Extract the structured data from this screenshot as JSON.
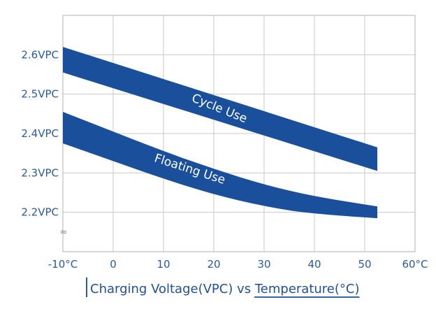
{
  "chart_data": {
    "type": "area",
    "title_parts": [
      "Charging Voltage(VPC) vs ",
      "Temperature(°C)"
    ],
    "x_ticks": [
      "-10°C",
      "0",
      "10",
      "20",
      "30",
      "40",
      "50",
      "60°C"
    ],
    "x_tick_values": [
      -10,
      0,
      10,
      20,
      30,
      40,
      50,
      60
    ],
    "y_ticks": [
      "2.6VPC",
      "2.5VPC",
      "2.4VPC",
      "2.3VPC",
      "2.2VPC"
    ],
    "y_tick_values": [
      2.6,
      2.5,
      2.4,
      2.3,
      2.2
    ],
    "axis_break_symbol": "≈",
    "xlim": [
      -10,
      60
    ],
    "ylim": [
      2.1,
      2.7
    ],
    "grid": true,
    "band_color": "#1a4f9c",
    "series": [
      {
        "name": "Cycle Use",
        "x": [
          -10,
          52.5
        ],
        "upper": [
          2.62,
          2.365
        ],
        "lower": [
          2.555,
          2.305
        ]
      },
      {
        "name": "Floating Use",
        "x": [
          -10,
          0,
          10,
          20,
          30,
          40,
          52.5
        ],
        "upper": [
          2.455,
          2.405,
          2.355,
          2.31,
          2.27,
          2.24,
          2.215
        ],
        "lower": [
          2.375,
          2.33,
          2.285,
          2.245,
          2.215,
          2.195,
          2.185
        ]
      }
    ]
  }
}
